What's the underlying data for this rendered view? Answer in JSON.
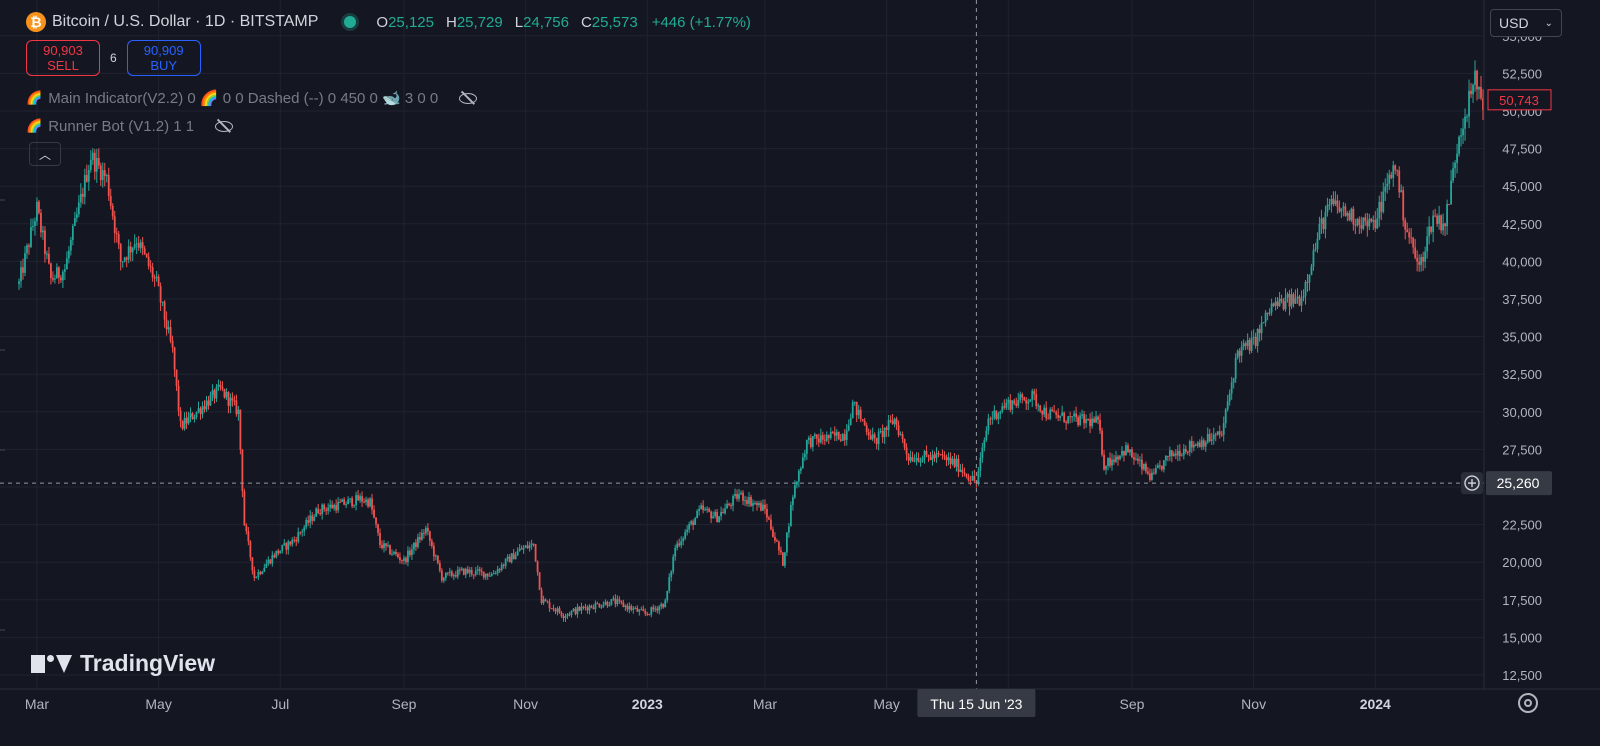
{
  "symbol": {
    "title": "Bitcoin / U.S. Dollar · 1D · BITSTAMP",
    "icon": "bitcoin-icon",
    "open_label": "O",
    "open": "25,125",
    "high_label": "H",
    "high": "25,729",
    "low_label": "L",
    "low": "24,756",
    "close_label": "C",
    "close": "25,573",
    "change": "+446 (+1.77%)"
  },
  "trade": {
    "sell_price": "90,903",
    "sell_label": "SELL",
    "spread": "6",
    "buy_price": "90,909",
    "buy_label": "BUY"
  },
  "indicators": [
    {
      "icon": "🌈",
      "text": "Main Indicator(V2.2) 0 🌈 0 0 Dashed (--) 0 450 0 🐋 3 0 0"
    },
    {
      "icon": "🌈",
      "text": "Runner Bot (V1.2) 1 1"
    }
  ],
  "currency": "USD",
  "crosshair": {
    "date_label": "Thu 15 Jun '23",
    "price_label": "25,260",
    "price": 25260
  },
  "last_price_label": "50,743",
  "last_price": 50743,
  "brand": "TradingView",
  "colors": {
    "background": "#141722",
    "up": "#26a69a",
    "down": "#ef5350",
    "grid": "#1f2330",
    "axis_text": "#b2b5be",
    "last_price": "#f23645"
  },
  "chart_data": {
    "type": "candlestick",
    "symbol": "BTCUSD",
    "interval": "1D",
    "ylim": [
      12500,
      55000
    ],
    "y_ticks": [
      12500,
      15000,
      17500,
      20000,
      22500,
      25000,
      27500,
      30000,
      32500,
      35000,
      37500,
      40000,
      42500,
      45000,
      47500,
      50000,
      52500,
      55000
    ],
    "y_tick_labels": [
      "12,500",
      "15,000",
      "17,500",
      "20,000",
      "22,500",
      "25,000",
      "27,500",
      "30,000",
      "32,500",
      "35,000",
      "37,500",
      "40,000",
      "42,500",
      "45,000",
      "47,500",
      "50,000",
      "52,500",
      "55,000"
    ],
    "x_tick_labels": [
      "Mar",
      "May",
      "Jul",
      "Sep",
      "Nov",
      "2023",
      "Mar",
      "May",
      "Sep",
      "Nov",
      "2024"
    ],
    "grid": true,
    "approximate_close_path": [
      [
        "2022-02-20",
        38500
      ],
      [
        "2022-03-01",
        43500
      ],
      [
        "2022-03-08",
        38800
      ],
      [
        "2022-03-15",
        39500
      ],
      [
        "2022-03-28",
        47000
      ],
      [
        "2022-04-05",
        45500
      ],
      [
        "2022-04-12",
        40000
      ],
      [
        "2022-04-20",
        41500
      ],
      [
        "2022-04-30",
        38500
      ],
      [
        "2022-05-08",
        34000
      ],
      [
        "2022-05-12",
        29000
      ],
      [
        "2022-05-20",
        30000
      ],
      [
        "2022-06-01",
        31500
      ],
      [
        "2022-06-10",
        30000
      ],
      [
        "2022-06-13",
        22500
      ],
      [
        "2022-06-18",
        19000
      ],
      [
        "2022-06-28",
        20500
      ],
      [
        "2022-07-08",
        21500
      ],
      [
        "2022-07-20",
        23500
      ],
      [
        "2022-07-30",
        23800
      ],
      [
        "2022-08-10",
        24200
      ],
      [
        "2022-08-15",
        24000
      ],
      [
        "2022-08-20",
        21200
      ],
      [
        "2022-09-01",
        20100
      ],
      [
        "2022-09-12",
        22200
      ],
      [
        "2022-09-20",
        19000
      ],
      [
        "2022-10-01",
        19400
      ],
      [
        "2022-10-15",
        19200
      ],
      [
        "2022-10-29",
        20800
      ],
      [
        "2022-11-05",
        21200
      ],
      [
        "2022-11-09",
        17500
      ],
      [
        "2022-11-20",
        16500
      ],
      [
        "2022-12-01",
        17000
      ],
      [
        "2022-12-15",
        17400
      ],
      [
        "2022-12-31",
        16550
      ],
      [
        "2023-01-10",
        17300
      ],
      [
        "2023-01-15",
        21000
      ],
      [
        "2023-01-28",
        23500
      ],
      [
        "2023-02-05",
        23000
      ],
      [
        "2023-02-16",
        24500
      ],
      [
        "2023-03-01",
        23500
      ],
      [
        "2023-03-10",
        20000
      ],
      [
        "2023-03-15",
        24500
      ],
      [
        "2023-03-22",
        28000
      ],
      [
        "2023-04-10",
        28500
      ],
      [
        "2023-04-14",
        30500
      ],
      [
        "2023-04-25",
        28000
      ],
      [
        "2023-05-05",
        29500
      ],
      [
        "2023-05-12",
        27000
      ],
      [
        "2023-05-28",
        27000
      ],
      [
        "2023-06-05",
        26500
      ],
      [
        "2023-06-15",
        25260
      ],
      [
        "2023-06-21",
        29500
      ],
      [
        "2023-06-30",
        30500
      ],
      [
        "2023-07-13",
        31000
      ],
      [
        "2023-07-20",
        29900
      ],
      [
        "2023-08-01",
        29500
      ],
      [
        "2023-08-15",
        29300
      ],
      [
        "2023-08-18",
        26500
      ],
      [
        "2023-08-29",
        27500
      ],
      [
        "2023-09-11",
        25600
      ],
      [
        "2023-09-20",
        27100
      ],
      [
        "2023-10-01",
        27800
      ],
      [
        "2023-10-16",
        28500
      ],
      [
        "2023-10-24",
        34000
      ],
      [
        "2023-11-01",
        34600
      ],
      [
        "2023-11-10",
        37000
      ],
      [
        "2023-11-25",
        37600
      ],
      [
        "2023-12-05",
        42500
      ],
      [
        "2023-12-10",
        43800
      ],
      [
        "2023-12-20",
        43000
      ],
      [
        "2023-12-31",
        42300
      ],
      [
        "2024-01-08",
        45500
      ],
      [
        "2024-01-11",
        46500
      ],
      [
        "2024-01-16",
        42500
      ],
      [
        "2024-01-23",
        39500
      ],
      [
        "2024-01-30",
        43000
      ],
      [
        "2024-02-05",
        42500
      ],
      [
        "2024-02-12",
        48500
      ],
      [
        "2024-02-20",
        52000
      ],
      [
        "2024-02-24",
        50743
      ]
    ]
  }
}
